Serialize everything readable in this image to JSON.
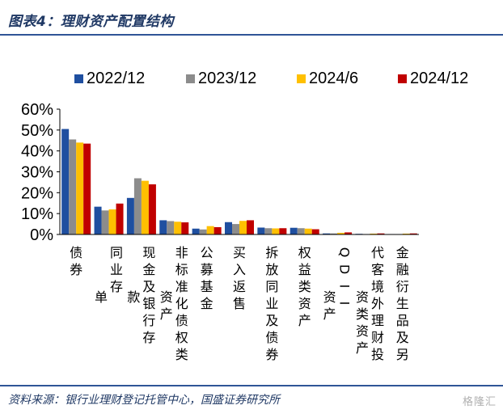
{
  "header": {
    "title": "图表4：理财资产配置结构"
  },
  "footer": {
    "source": "资料来源：银行业理财登记托管中心，国盛证券研究所",
    "watermark": "格隆汇"
  },
  "colors": {
    "s1": "#1f4fa0",
    "s2": "#8c8c8c",
    "s3": "#ffc000",
    "s4": "#c00000",
    "rule": "#2f5597"
  },
  "chart_data": {
    "type": "bar",
    "title": "",
    "xlabel": "",
    "ylabel": "",
    "ylim": [
      0,
      60
    ],
    "yticks": [
      "0%",
      "10%",
      "20%",
      "30%",
      "40%",
      "50%",
      "60%"
    ],
    "legend_position": "top",
    "grid": false,
    "categories": [
      "债券",
      "同业存单",
      "现金及银行存款",
      "非标准化债权类资产",
      "公募基金",
      "买入返售",
      "拆放同业及债券",
      "权益类资产",
      "QDII资产",
      "代客境外理财投资类资产",
      "金融衍生品及另"
    ],
    "category_label_lines": [
      [
        "债券"
      ],
      [
        "同业存",
        "单"
      ],
      [
        "现金及银行存",
        "款"
      ],
      [
        "非标准化债权类",
        "资产"
      ],
      [
        "公募基金"
      ],
      [
        "买入返售"
      ],
      [
        "拆放同业及债券"
      ],
      [
        "权益类资产"
      ],
      [
        "QDII",
        "资产"
      ],
      [
        "代客境外理财投",
        "资类资产"
      ],
      [
        "金融衍生品及另"
      ]
    ],
    "series": [
      {
        "name": "2022/12",
        "values": [
          50.5,
          13.3,
          17.5,
          6.8,
          2.8,
          5.9,
          3.3,
          3.2,
          0.5,
          0.3,
          0.2
        ]
      },
      {
        "name": "2023/12",
        "values": [
          45.5,
          11.5,
          26.9,
          6.4,
          2.4,
          5.0,
          3.0,
          3.0,
          0.5,
          0.2,
          0.2
        ]
      },
      {
        "name": "2024/6",
        "values": [
          44.0,
          12.0,
          25.7,
          6.1,
          4.0,
          6.5,
          2.9,
          2.8,
          0.8,
          0.4,
          0.4
        ]
      },
      {
        "name": "2024/12",
        "values": [
          43.5,
          14.8,
          24.0,
          5.8,
          3.5,
          6.8,
          3.0,
          2.5,
          1.0,
          0.5,
          0.5
        ]
      }
    ]
  }
}
